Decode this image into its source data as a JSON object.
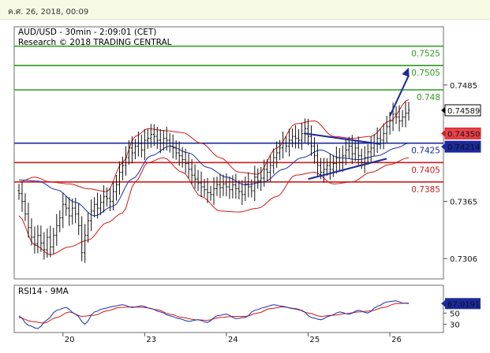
{
  "timestamp": "ค.ศ. 26, 2018, 00:09",
  "chart_data": {
    "type": "candlestick",
    "title": "AUD/USD - 30min - 2:09:01 (CET)",
    "subtitle": "Research © 2018 TRADING CENTRAL",
    "ylim": [
      0.7285,
      0.7545
    ],
    "y_ticks": [
      "0.7485",
      "0.7365",
      "0.7306"
    ],
    "y_tick_values": [
      0.7485,
      0.7365,
      0.7306
    ],
    "x_ticks": [
      "20",
      "23",
      "24",
      "25",
      "26"
    ],
    "x_tick_index": [
      14,
      40,
      66,
      92,
      118
    ],
    "n_bars": 125,
    "current_price": "0.74589",
    "levels": [
      {
        "label": "0.7525",
        "value": 0.7525,
        "color": "#2e9a1e",
        "role": "resistance"
      },
      {
        "label": "0.7505",
        "value": 0.7505,
        "color": "#2e9a1e",
        "role": "resistance"
      },
      {
        "label": "0.748",
        "value": 0.748,
        "color": "#2e9a1e",
        "role": "resistance"
      },
      {
        "label": "0.7425",
        "value": 0.7425,
        "color": "#1a2a9c",
        "role": "pivot"
      },
      {
        "label": "0.7405",
        "value": 0.7405,
        "color": "#cc1f1f",
        "role": "support"
      },
      {
        "label": "0.7385",
        "value": 0.7385,
        "color": "#cc1f1f",
        "role": "support"
      }
    ],
    "tags": [
      {
        "label": "0.74589",
        "value": 0.74589,
        "color": "#000000",
        "text_color": "#000000",
        "bg": "#ffffff"
      },
      {
        "label": "0.74350",
        "value": 0.7435,
        "color": "#cc1f1f",
        "text_color": "#000000",
        "bg": "#e8424a"
      },
      {
        "label": "0.74214",
        "value": 0.74214,
        "color": "#1a2a9c",
        "text_color": "#ffffff",
        "bg": "#1a2a9c"
      }
    ],
    "close": [
      0.7373,
      0.7365,
      0.7352,
      0.7338,
      0.7328,
      0.7321,
      0.733,
      0.7322,
      0.7315,
      0.7328,
      0.7318,
      0.733,
      0.734,
      0.7348,
      0.7362,
      0.7358,
      0.735,
      0.7358,
      0.7352,
      0.734,
      0.7312,
      0.733,
      0.7345,
      0.7355,
      0.7362,
      0.7358,
      0.7364,
      0.737,
      0.7368,
      0.7365,
      0.7375,
      0.7382,
      0.7395,
      0.7402,
      0.741,
      0.742,
      0.7415,
      0.7422,
      0.7425,
      0.7418,
      0.7428,
      0.743,
      0.7434,
      0.7432,
      0.7428,
      0.7425,
      0.743,
      0.7428,
      0.7422,
      0.742,
      0.7415,
      0.7412,
      0.7408,
      0.7404,
      0.7398,
      0.7392,
      0.7388,
      0.7384,
      0.738,
      0.7377,
      0.7374,
      0.7372,
      0.7378,
      0.7382,
      0.7379,
      0.7383,
      0.738,
      0.7377,
      0.7382,
      0.7378,
      0.7375,
      0.7372,
      0.7383,
      0.738,
      0.7376,
      0.739,
      0.7386,
      0.7389,
      0.7398,
      0.7395,
      0.7402,
      0.741,
      0.7415,
      0.742,
      0.7425,
      0.7422,
      0.7428,
      0.7432,
      0.743,
      0.7428,
      0.7435,
      0.744,
      0.7432,
      0.7422,
      0.7412,
      0.7402,
      0.7395,
      0.7398,
      0.7402,
      0.7398,
      0.7404,
      0.741,
      0.7405,
      0.7412,
      0.7418,
      0.7422,
      0.7414,
      0.742,
      0.7412,
      0.7405,
      0.741,
      0.7416,
      0.742,
      0.7425,
      0.743,
      0.7428,
      0.7435,
      0.7442,
      0.7448,
      0.7455,
      0.7452,
      0.7448,
      0.7452,
      0.7456,
      0.7459
    ],
    "upper_band": [
      [
        0,
        0.7385
      ],
      [
        5,
        0.739
      ],
      [
        10,
        0.7385
      ],
      [
        16,
        0.7383
      ],
      [
        22,
        0.7378
      ],
      [
        28,
        0.7375
      ],
      [
        33,
        0.7405
      ],
      [
        37,
        0.7432
      ],
      [
        41,
        0.744
      ],
      [
        46,
        0.7438
      ],
      [
        52,
        0.7436
      ],
      [
        58,
        0.7425
      ],
      [
        64,
        0.741
      ],
      [
        70,
        0.7395
      ],
      [
        76,
        0.7393
      ],
      [
        82,
        0.742
      ],
      [
        88,
        0.7445
      ],
      [
        94,
        0.7448
      ],
      [
        100,
        0.7432
      ],
      [
        106,
        0.743
      ],
      [
        112,
        0.7432
      ],
      [
        118,
        0.7448
      ],
      [
        124,
        0.747
      ]
    ],
    "lower_band": [
      [
        0,
        0.735
      ],
      [
        5,
        0.732
      ],
      [
        10,
        0.731
      ],
      [
        16,
        0.7318
      ],
      [
        22,
        0.7325
      ],
      [
        28,
        0.7343
      ],
      [
        33,
        0.7353
      ],
      [
        37,
        0.7385
      ],
      [
        41,
        0.7405
      ],
      [
        46,
        0.741
      ],
      [
        52,
        0.7395
      ],
      [
        58,
        0.737
      ],
      [
        64,
        0.7355
      ],
      [
        70,
        0.7354
      ],
      [
        76,
        0.7358
      ],
      [
        82,
        0.737
      ],
      [
        88,
        0.7392
      ],
      [
        94,
        0.7395
      ],
      [
        100,
        0.7383
      ],
      [
        106,
        0.7385
      ],
      [
        112,
        0.7395
      ],
      [
        118,
        0.7403
      ],
      [
        124,
        0.741
      ]
    ],
    "moving_average": [
      [
        0,
        0.7387
      ],
      [
        6,
        0.7386
      ],
      [
        12,
        0.7377
      ],
      [
        18,
        0.7364
      ],
      [
        24,
        0.735
      ],
      [
        30,
        0.736
      ],
      [
        36,
        0.7388
      ],
      [
        42,
        0.7412
      ],
      [
        48,
        0.7422
      ],
      [
        54,
        0.7415
      ],
      [
        60,
        0.74
      ],
      [
        66,
        0.739
      ],
      [
        72,
        0.7382
      ],
      [
        78,
        0.7385
      ],
      [
        84,
        0.7398
      ],
      [
        90,
        0.741
      ],
      [
        96,
        0.7418
      ],
      [
        102,
        0.741
      ],
      [
        108,
        0.7408
      ],
      [
        114,
        0.7412
      ],
      [
        120,
        0.742
      ],
      [
        124,
        0.7425
      ]
    ],
    "triangle": {
      "upper": [
        [
          91,
          0.7435
        ],
        [
          115,
          0.7424
        ]
      ],
      "lower": [
        [
          92,
          0.7388
        ],
        [
          117,
          0.7409
        ]
      ]
    },
    "arrow": {
      "from": [
        118,
        0.7453
      ],
      "to": [
        124,
        0.7503
      ]
    },
    "rsi": {
      "label": "RSI14 - 9MA",
      "current": "67.0191",
      "ylim": [
        15,
        100
      ],
      "y_ticks": [
        "50",
        "30"
      ],
      "y_tick_values": [
        50,
        30
      ],
      "rsi": [
        [
          0,
          45
        ],
        [
          3,
          28
        ],
        [
          6,
          22
        ],
        [
          9,
          38
        ],
        [
          12,
          55
        ],
        [
          15,
          60
        ],
        [
          18,
          48
        ],
        [
          21,
          30
        ],
        [
          24,
          52
        ],
        [
          27,
          58
        ],
        [
          30,
          62
        ],
        [
          33,
          65
        ],
        [
          36,
          60
        ],
        [
          39,
          63
        ],
        [
          42,
          58
        ],
        [
          45,
          52
        ],
        [
          48,
          45
        ],
        [
          51,
          40
        ],
        [
          54,
          35
        ],
        [
          57,
          38
        ],
        [
          60,
          33
        ],
        [
          63,
          45
        ],
        [
          66,
          48
        ],
        [
          69,
          40
        ],
        [
          72,
          42
        ],
        [
          75,
          55
        ],
        [
          78,
          60
        ],
        [
          81,
          65
        ],
        [
          84,
          62
        ],
        [
          87,
          58
        ],
        [
          90,
          55
        ],
        [
          93,
          42
        ],
        [
          96,
          38
        ],
        [
          99,
          45
        ],
        [
          102,
          52
        ],
        [
          105,
          48
        ],
        [
          108,
          55
        ],
        [
          111,
          50
        ],
        [
          114,
          62
        ],
        [
          117,
          70
        ],
        [
          120,
          72
        ],
        [
          122,
          68
        ],
        [
          124,
          67
        ]
      ],
      "ma": [
        [
          0,
          42
        ],
        [
          4,
          35
        ],
        [
          8,
          32
        ],
        [
          12,
          42
        ],
        [
          16,
          52
        ],
        [
          20,
          44
        ],
        [
          24,
          46
        ],
        [
          28,
          54
        ],
        [
          32,
          60
        ],
        [
          36,
          61
        ],
        [
          40,
          60
        ],
        [
          44,
          56
        ],
        [
          48,
          48
        ],
        [
          52,
          42
        ],
        [
          56,
          38
        ],
        [
          60,
          37
        ],
        [
          64,
          42
        ],
        [
          68,
          44
        ],
        [
          72,
          44
        ],
        [
          76,
          50
        ],
        [
          80,
          58
        ],
        [
          84,
          61
        ],
        [
          88,
          58
        ],
        [
          92,
          50
        ],
        [
          96,
          44
        ],
        [
          100,
          46
        ],
        [
          104,
          49
        ],
        [
          108,
          52
        ],
        [
          112,
          54
        ],
        [
          116,
          60
        ],
        [
          120,
          67
        ],
        [
          124,
          68
        ]
      ]
    }
  }
}
